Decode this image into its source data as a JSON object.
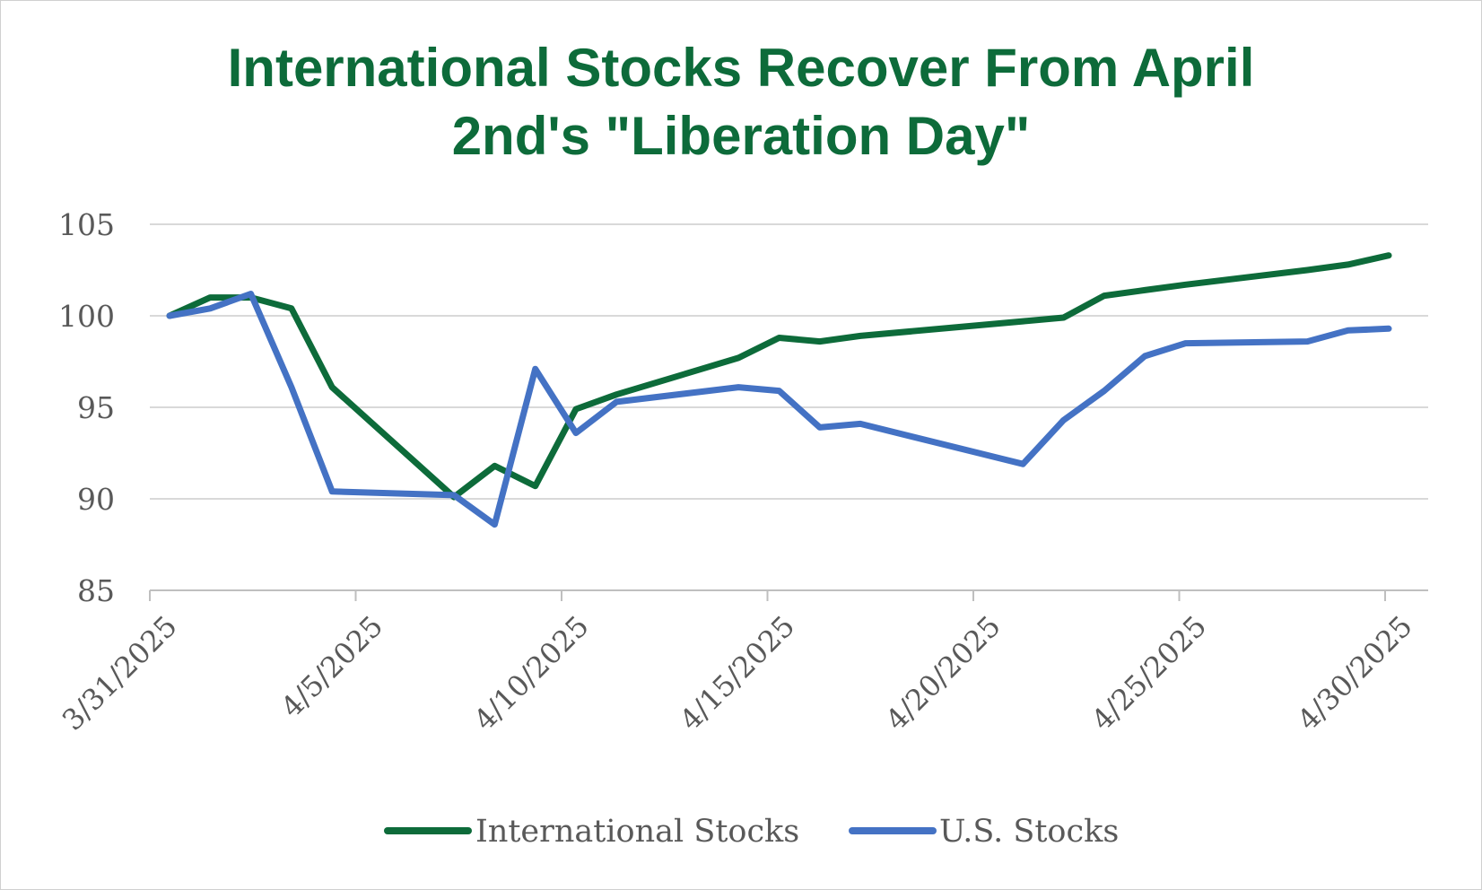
{
  "chart_data": {
    "type": "line",
    "title_lines": [
      "International Stocks Recover From April",
      "2nd's \"Liberation Day\""
    ],
    "xlabel": "",
    "ylabel": "",
    "x_range": [
      "2025-03-31",
      "2025-04-30"
    ],
    "x_ticks": [
      {
        "date": "2025-03-31",
        "label": "3/31/2025"
      },
      {
        "date": "2025-04-05",
        "label": "4/5/2025"
      },
      {
        "date": "2025-04-10",
        "label": "4/10/2025"
      },
      {
        "date": "2025-04-15",
        "label": "4/15/2025"
      },
      {
        "date": "2025-04-20",
        "label": "4/20/2025"
      },
      {
        "date": "2025-04-25",
        "label": "4/25/2025"
      },
      {
        "date": "2025-04-30",
        "label": "4/30/2025"
      }
    ],
    "ylim": [
      85,
      105
    ],
    "y_ticks": [
      {
        "value": 85,
        "label": "85"
      },
      {
        "value": 90,
        "label": "90"
      },
      {
        "value": 95,
        "label": "95"
      },
      {
        "value": 100,
        "label": "100"
      },
      {
        "value": 105,
        "label": "105"
      }
    ],
    "grid": true,
    "legend_position": "bottom",
    "series": [
      {
        "name": "International Stocks",
        "color": "#0d6b3a",
        "points": [
          {
            "x": "2025-03-31",
            "y": 100.0
          },
          {
            "x": "2025-04-01",
            "y": 101.0
          },
          {
            "x": "2025-04-02",
            "y": 101.0
          },
          {
            "x": "2025-04-03",
            "y": 100.4
          },
          {
            "x": "2025-04-04",
            "y": 96.1
          },
          {
            "x": "2025-04-07",
            "y": 90.1
          },
          {
            "x": "2025-04-08",
            "y": 91.8
          },
          {
            "x": "2025-04-09",
            "y": 90.7
          },
          {
            "x": "2025-04-10",
            "y": 94.9
          },
          {
            "x": "2025-04-11",
            "y": 95.7
          },
          {
            "x": "2025-04-14",
            "y": 97.7
          },
          {
            "x": "2025-04-15",
            "y": 98.8
          },
          {
            "x": "2025-04-16",
            "y": 98.6
          },
          {
            "x": "2025-04-17",
            "y": 98.9
          },
          {
            "x": "2025-04-21",
            "y": 99.7
          },
          {
            "x": "2025-04-22",
            "y": 99.9
          },
          {
            "x": "2025-04-23",
            "y": 101.1
          },
          {
            "x": "2025-04-24",
            "y": 101.4
          },
          {
            "x": "2025-04-25",
            "y": 101.7
          },
          {
            "x": "2025-04-28",
            "y": 102.5
          },
          {
            "x": "2025-04-29",
            "y": 102.8
          },
          {
            "x": "2025-04-30",
            "y": 103.3
          }
        ]
      },
      {
        "name": "U.S. Stocks",
        "color": "#4472c4",
        "points": [
          {
            "x": "2025-03-31",
            "y": 100.0
          },
          {
            "x": "2025-04-01",
            "y": 100.4
          },
          {
            "x": "2025-04-02",
            "y": 101.2
          },
          {
            "x": "2025-04-03",
            "y": 96.1
          },
          {
            "x": "2025-04-04",
            "y": 90.4
          },
          {
            "x": "2025-04-07",
            "y": 90.2
          },
          {
            "x": "2025-04-08",
            "y": 88.6
          },
          {
            "x": "2025-04-09",
            "y": 97.1
          },
          {
            "x": "2025-04-10",
            "y": 93.6
          },
          {
            "x": "2025-04-11",
            "y": 95.3
          },
          {
            "x": "2025-04-14",
            "y": 96.1
          },
          {
            "x": "2025-04-15",
            "y": 95.9
          },
          {
            "x": "2025-04-16",
            "y": 93.9
          },
          {
            "x": "2025-04-17",
            "y": 94.1
          },
          {
            "x": "2025-04-21",
            "y": 91.9
          },
          {
            "x": "2025-04-22",
            "y": 94.3
          },
          {
            "x": "2025-04-23",
            "y": 95.9
          },
          {
            "x": "2025-04-24",
            "y": 97.8
          },
          {
            "x": "2025-04-25",
            "y": 98.5
          },
          {
            "x": "2025-04-28",
            "y": 98.6
          },
          {
            "x": "2025-04-29",
            "y": 99.2
          },
          {
            "x": "2025-04-30",
            "y": 99.3
          }
        ]
      }
    ]
  }
}
